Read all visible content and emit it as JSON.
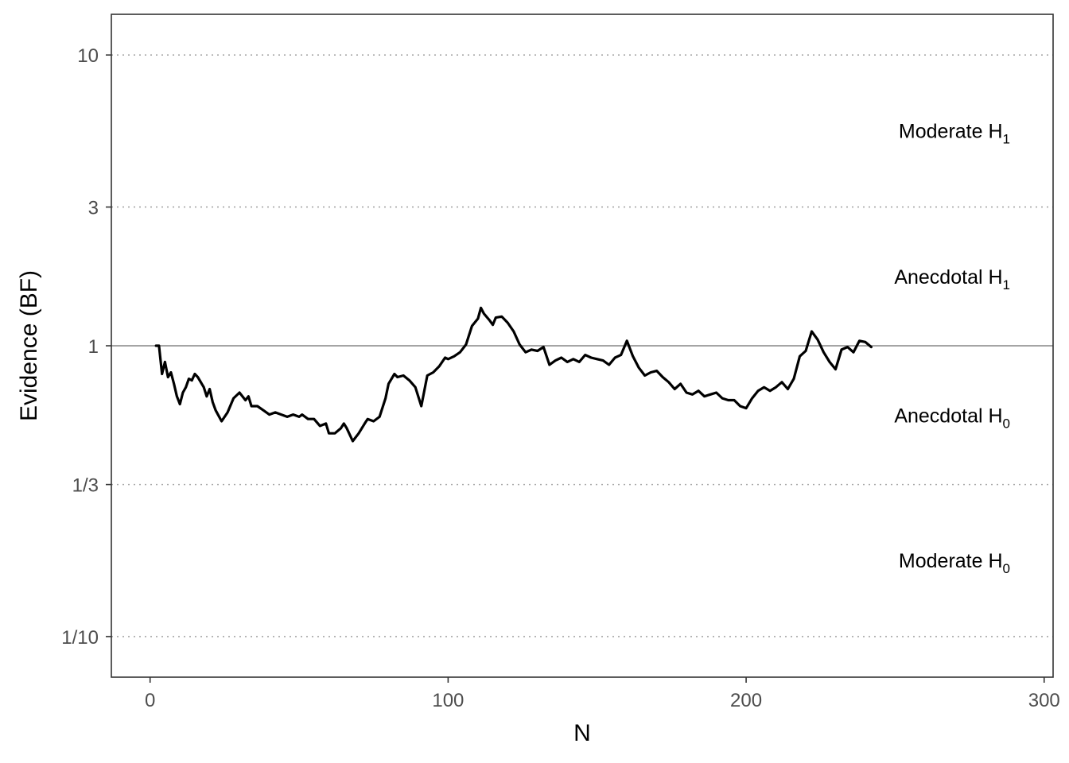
{
  "chart_data": {
    "type": "line",
    "xlabel": "N",
    "ylabel": "Evidence (BF)",
    "y_scale": "log",
    "xlim": [
      -13,
      303
    ],
    "ylim": [
      0.0725,
      13.8
    ],
    "x_ticks": [
      {
        "value": 0,
        "label": "0"
      },
      {
        "value": 100,
        "label": "100"
      },
      {
        "value": 200,
        "label": "200"
      },
      {
        "value": 300,
        "label": "300"
      }
    ],
    "y_ticks": [
      {
        "value": 10,
        "label": "10"
      },
      {
        "value": 3,
        "label": "3"
      },
      {
        "value": 1,
        "label": "1"
      },
      {
        "value": 0.3333,
        "label": "1/3"
      },
      {
        "value": 0.1,
        "label": "1/10"
      }
    ],
    "reference_lines": [
      {
        "y": 10,
        "style": "dotted"
      },
      {
        "y": 3,
        "style": "dotted"
      },
      {
        "y": 1,
        "style": "solid"
      },
      {
        "y": 0.3333,
        "style": "dotted"
      },
      {
        "y": 0.1,
        "style": "dotted"
      }
    ],
    "region_labels": [
      {
        "main": "Moderate H",
        "sub": "1",
        "y": 5.48
      },
      {
        "main": "Anecdotal H",
        "sub": "1",
        "y": 1.73
      },
      {
        "main": "Anecdotal H",
        "sub": "0",
        "y": 0.577
      },
      {
        "main": "Moderate H",
        "sub": "0",
        "y": 0.183
      }
    ],
    "series": [
      {
        "color": "#000000",
        "x": [
          2,
          3,
          4,
          5,
          6,
          7,
          8,
          9,
          10,
          11,
          12,
          13,
          14,
          15,
          16,
          18,
          19,
          20,
          21,
          22,
          24,
          26,
          28,
          30,
          32,
          33,
          34,
          36,
          38,
          40,
          42,
          44,
          46,
          48,
          50,
          51,
          53,
          55,
          57,
          59,
          60,
          62,
          64,
          65,
          66,
          68,
          70,
          72,
          73,
          75,
          77,
          79,
          80,
          82,
          83,
          85,
          87,
          89,
          91,
          93,
          95,
          97,
          99,
          100,
          102,
          104,
          106,
          108,
          110,
          111,
          112,
          114,
          115,
          116,
          118,
          120,
          122,
          124,
          126,
          128,
          130,
          132,
          134,
          136,
          138,
          140,
          142,
          144,
          146,
          148,
          150,
          152,
          154,
          156,
          158,
          160,
          162,
          164,
          166,
          168,
          170,
          172,
          174,
          176,
          178,
          180,
          182,
          184,
          186,
          188,
          190,
          192,
          194,
          196,
          198,
          200,
          202,
          204,
          206,
          208,
          210,
          212,
          214,
          216,
          218,
          220,
          222,
          224,
          226,
          228,
          230,
          232,
          234,
          236,
          238,
          240,
          242
        ],
        "y": [
          1.0,
          1.0,
          0.8,
          0.88,
          0.78,
          0.81,
          0.74,
          0.67,
          0.63,
          0.69,
          0.72,
          0.77,
          0.76,
          0.8,
          0.78,
          0.72,
          0.67,
          0.71,
          0.64,
          0.6,
          0.55,
          0.59,
          0.66,
          0.69,
          0.65,
          0.67,
          0.62,
          0.62,
          0.6,
          0.58,
          0.59,
          0.58,
          0.57,
          0.58,
          0.57,
          0.58,
          0.56,
          0.56,
          0.53,
          0.54,
          0.5,
          0.5,
          0.52,
          0.54,
          0.52,
          0.47,
          0.5,
          0.54,
          0.56,
          0.55,
          0.57,
          0.66,
          0.74,
          0.8,
          0.78,
          0.79,
          0.76,
          0.72,
          0.62,
          0.79,
          0.81,
          0.85,
          0.91,
          0.9,
          0.92,
          0.95,
          1.01,
          1.17,
          1.24,
          1.35,
          1.29,
          1.22,
          1.18,
          1.25,
          1.26,
          1.2,
          1.12,
          1.01,
          0.95,
          0.97,
          0.96,
          0.99,
          0.86,
          0.89,
          0.91,
          0.88,
          0.9,
          0.88,
          0.93,
          0.91,
          0.9,
          0.89,
          0.86,
          0.91,
          0.93,
          1.04,
          0.92,
          0.84,
          0.79,
          0.81,
          0.82,
          0.78,
          0.75,
          0.71,
          0.74,
          0.69,
          0.68,
          0.7,
          0.67,
          0.68,
          0.69,
          0.66,
          0.65,
          0.65,
          0.62,
          0.61,
          0.66,
          0.7,
          0.72,
          0.7,
          0.72,
          0.75,
          0.71,
          0.77,
          0.92,
          0.96,
          1.12,
          1.05,
          0.95,
          0.88,
          0.83,
          0.97,
          0.99,
          0.95,
          1.04,
          1.03,
          0.99
        ]
      }
    ]
  }
}
